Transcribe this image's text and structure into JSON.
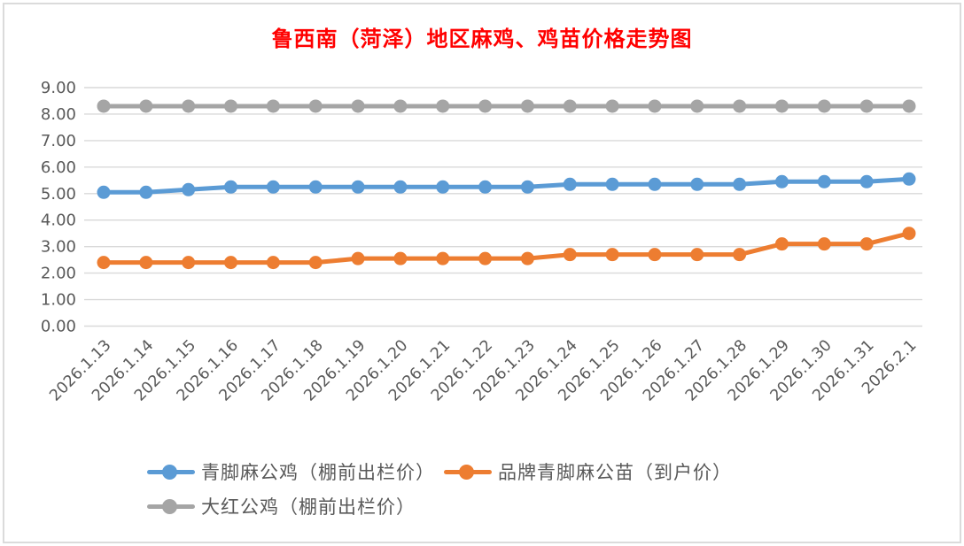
{
  "window": {
    "background": "#FFFFFF",
    "border_color": "#DBDBDB"
  },
  "chart_data": {
    "type": "line",
    "title": "鲁西南（菏泽）地区麻鸡、鸡苗价格走势图",
    "title_color": "#FF0000",
    "categories": [
      "2026.1.13",
      "2026.1.14",
      "2026.1.15",
      "2026.1.16",
      "2026.1.17",
      "2026.1.18",
      "2026.1.19",
      "2026.1.20",
      "2026.1.21",
      "2026.1.22",
      "2026.1.23",
      "2026.1.24",
      "2026.1.25",
      "2026.1.26",
      "2026.1.27",
      "2026.1.28",
      "2026.1.29",
      "2026.1.30",
      "2026.1.31",
      "2026.2.1"
    ],
    "series": [
      {
        "name": "青脚麻公鸡（棚前出栏价）",
        "color": "#5B9BD5",
        "values": [
          5.05,
          5.05,
          5.15,
          5.25,
          5.25,
          5.25,
          5.25,
          5.25,
          5.25,
          5.25,
          5.25,
          5.35,
          5.35,
          5.35,
          5.35,
          5.35,
          5.45,
          5.45,
          5.45,
          5.55
        ]
      },
      {
        "name": "品牌青脚麻公苗（到户价）",
        "color": "#ED7D31",
        "values": [
          2.4,
          2.4,
          2.4,
          2.4,
          2.4,
          2.4,
          2.55,
          2.55,
          2.55,
          2.55,
          2.55,
          2.7,
          2.7,
          2.7,
          2.7,
          2.7,
          3.1,
          3.1,
          3.1,
          3.5
        ]
      },
      {
        "name": "大红公鸡（棚前出栏价）",
        "color": "#A5A5A5",
        "values": [
          8.3,
          8.3,
          8.3,
          8.3,
          8.3,
          8.3,
          8.3,
          8.3,
          8.3,
          8.3,
          8.3,
          8.3,
          8.3,
          8.3,
          8.3,
          8.3,
          8.3,
          8.3,
          8.3,
          8.3
        ]
      }
    ],
    "ylim": [
      0,
      9
    ],
    "y_tick_labels": [
      "0.00",
      "1.00",
      "2.00",
      "3.00",
      "4.00",
      "5.00",
      "6.00",
      "7.00",
      "8.00",
      "9.00"
    ],
    "grid": true,
    "gridline_color": "#D9D9D9",
    "axis_text_color": "#595959",
    "legend_position": "bottom",
    "xlabel": "",
    "ylabel": ""
  }
}
